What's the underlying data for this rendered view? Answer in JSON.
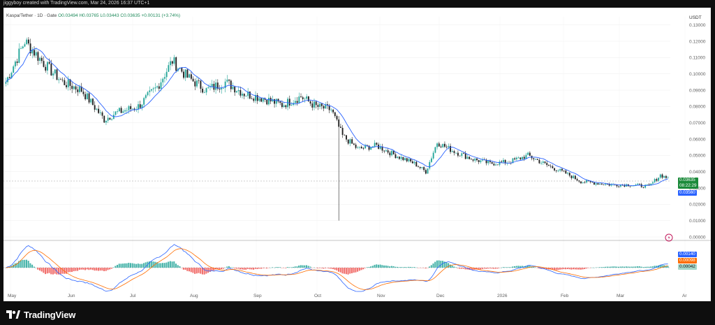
{
  "header": {
    "credit": "jiggyboy created with TradingView.com, Mar 24, 2026 16:37 UTC+1"
  },
  "legend": {
    "symbol": "Kaspa/Tether · 1D · Gate",
    "open": "O0.03494",
    "high": "H0.03765",
    "low": "L0.03443",
    "close": "C0.03635",
    "change": "+0.00131 (+3.74%)"
  },
  "price_axis": {
    "currency": "USDT",
    "labels": [
      "0.13000",
      "0.12000",
      "0.11000",
      "0.10000",
      "0.09000",
      "0.08000",
      "0.07000",
      "0.06000",
      "0.05000",
      "0.04000",
      "0.03000",
      "0.02000",
      "0.01000",
      "0.00000"
    ],
    "last_price": "0.03635",
    "countdown": "08:22:29",
    "ma_value": "0.03560"
  },
  "macd_axis": {
    "labels": [
      "0.00140",
      "0.00098",
      "0.00042"
    ]
  },
  "time_axis": {
    "labels": [
      "May",
      "Jun",
      "Jul",
      "Aug",
      "Sep",
      "Oct",
      "Nov",
      "Dec",
      "2026",
      "Feb",
      "Mar",
      "Ar"
    ]
  },
  "footer": {
    "brand": "TradingView"
  },
  "colors": {
    "up_candle": "#26a69a",
    "down_candle": "#222222",
    "ma_line": "#2962ff",
    "macd_line": "#2962ff",
    "signal_line": "#ff6d00",
    "hist_up": "#26a69a",
    "hist_down": "#ef5350",
    "last_price_tag": "#1b8a3a",
    "ma_tag": "#2962ff",
    "orange_tag": "#ff6d00"
  },
  "chart_data": {
    "type": "candlestick",
    "symbol": "Kaspa/Tether",
    "timeframe": "1D",
    "x_labels": [
      "May",
      "Jun",
      "Jul",
      "Aug",
      "Sep",
      "Oct",
      "Nov",
      "Dec",
      "2026",
      "Feb",
      "Mar"
    ],
    "ylim": [
      0,
      0.135
    ],
    "approx_close_by_month": [
      {
        "month": "May",
        "price": 0.105
      },
      {
        "month": "Jun",
        "price": 0.088
      },
      {
        "month": "Jul",
        "price": 0.078
      },
      {
        "month": "Aug",
        "price": 0.095
      },
      {
        "month": "Sep",
        "price": 0.085
      },
      {
        "month": "Oct",
        "price": 0.08
      },
      {
        "month": "Nov",
        "price": 0.051
      },
      {
        "month": "Dec",
        "price": 0.058
      },
      {
        "month": "2026",
        "price": 0.048
      },
      {
        "month": "Feb",
        "price": 0.034
      },
      {
        "month": "Mar",
        "price": 0.031
      },
      {
        "month": "Mar-24",
        "price": 0.03635
      }
    ],
    "last": {
      "open": 0.03494,
      "high": 0.03765,
      "low": 0.03443,
      "close": 0.03635
    },
    "ma_last": 0.0356,
    "notable_low_wick": 0.01,
    "macd": {
      "macd": 0.0014,
      "signal": 0.00098,
      "histogram": 0.00042
    }
  }
}
